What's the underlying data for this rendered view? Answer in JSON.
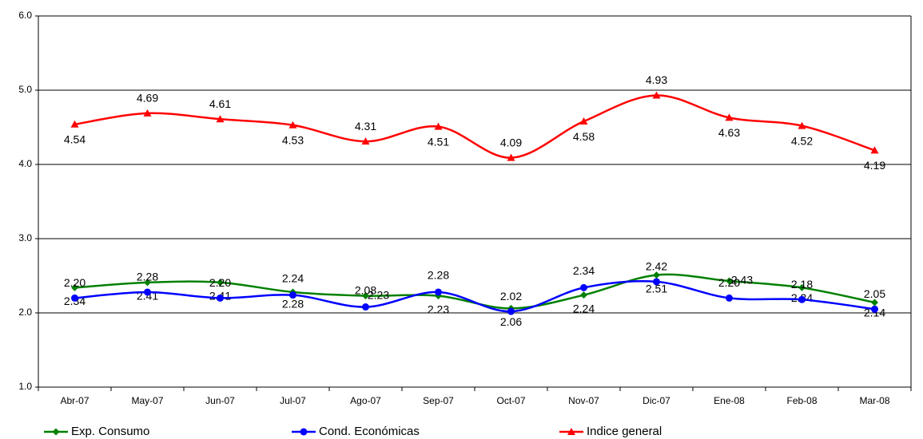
{
  "chart_data": {
    "type": "line",
    "categories": [
      "Abr-07",
      "May-07",
      "Jun-07",
      "Jul-07",
      "Ago-07",
      "Sep-07",
      "Oct-07",
      "Nov-07",
      "Dic-07",
      "Ene-08",
      "Feb-08",
      "Mar-08"
    ],
    "series": [
      {
        "name": "Exp. Consumo",
        "color": "#008000",
        "marker": "diamond",
        "values": [
          2.34,
          2.41,
          2.41,
          2.28,
          2.23,
          2.23,
          2.06,
          2.24,
          2.51,
          2.43,
          2.34,
          2.14
        ],
        "value_labels": [
          "2.34",
          "2.41",
          "2.41",
          "2.28",
          "2.23",
          "2.23",
          "2.06",
          "2.24",
          "2.51",
          "2.43",
          "2.34",
          "2.14"
        ]
      },
      {
        "name": "Cond. Económicas",
        "color": "#0000ff",
        "marker": "circle",
        "values": [
          2.2,
          2.28,
          2.2,
          2.24,
          2.08,
          2.28,
          2.02,
          2.34,
          2.42,
          2.2,
          2.18,
          2.05
        ],
        "value_labels": [
          "2.20",
          "2.28",
          "2.20",
          "2.24",
          "2.08",
          "2.28",
          "2.02",
          "2.34",
          "2.42",
          "2.20",
          "2.18",
          "2.05"
        ]
      },
      {
        "name": "Indice general",
        "color": "#ff0000",
        "marker": "triangle",
        "values": [
          4.54,
          4.69,
          4.61,
          4.53,
          4.31,
          4.51,
          4.09,
          4.58,
          4.93,
          4.63,
          4.52,
          4.19
        ],
        "value_labels": [
          "4.54",
          "4.69",
          "4.61",
          "4.53",
          "4.31",
          "4.51",
          "4.09",
          "4.58",
          "4.93",
          "4.63",
          "4.52",
          "4.19"
        ]
      }
    ],
    "ylim": [
      1,
      6
    ],
    "yticks": [
      {
        "value": 1,
        "label": "1.0"
      },
      {
        "value": 2,
        "label": "2.0"
      },
      {
        "value": 3,
        "label": "3.0"
      },
      {
        "value": 4,
        "label": "4.0"
      },
      {
        "value": 5,
        "label": "5.0"
      },
      {
        "value": 6,
        "label": "6.0"
      }
    ],
    "grid": true,
    "legend": "bottom"
  }
}
